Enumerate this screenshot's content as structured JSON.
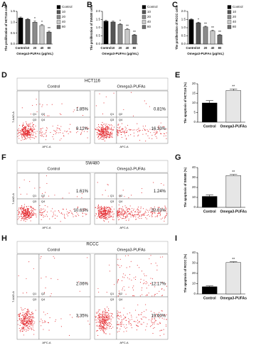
{
  "chart_data": [
    {
      "type": "bar",
      "panel": "A",
      "ylabel": "The proliferation of HCT116 cells",
      "xlabel": "Omega3-PUFAs (μg/mL)",
      "categories": [
        "Control",
        "10",
        "20",
        "40",
        "80"
      ],
      "values": [
        1.2,
        1.13,
        1.0,
        0.85,
        0.55
      ],
      "errors": [
        0.04,
        0.04,
        0.05,
        0.04,
        0.04
      ],
      "annotations": [
        null,
        null,
        "*",
        "*",
        "**"
      ],
      "colors": [
        "#000000",
        "#555555",
        "#8a8a8a",
        "#c8c8c8",
        "#6e6e6e"
      ],
      "ylim": [
        0,
        1.5
      ],
      "yticks": [
        {
          "value": 0,
          "label": "0.0"
        },
        {
          "value": 0.5,
          "label": "0.5"
        },
        {
          "value": 1,
          "label": "1.0"
        },
        {
          "value": 1.5,
          "label": "1.5"
        }
      ],
      "legend": true
    },
    {
      "type": "bar",
      "panel": "B",
      "ylabel": "The proliferation of SW480 cells",
      "xlabel": "Omega3-PUFAs (μg/mL)",
      "categories": [
        "Control",
        "10",
        "20",
        "40",
        "80"
      ],
      "values": [
        1.4,
        1.35,
        1.2,
        0.9,
        0.55
      ],
      "errors": [
        0.05,
        0.05,
        0.05,
        0.05,
        0.04
      ],
      "annotations": [
        null,
        null,
        "*",
        "**",
        "**"
      ],
      "colors": [
        "#000000",
        "#555555",
        "#8a8a8a",
        "#c8c8c8",
        "#6e6e6e"
      ],
      "ylim": [
        0,
        2
      ],
      "yticks": [
        {
          "value": 0,
          "label": "0.0"
        },
        {
          "value": 0.5,
          "label": "0.5"
        },
        {
          "value": 1,
          "label": "1.0"
        },
        {
          "value": 1.5,
          "label": "1.5"
        },
        {
          "value": 2,
          "label": "2.0"
        }
      ],
      "legend": true
    },
    {
      "type": "bar",
      "panel": "C",
      "ylabel": "The proliferation of RCCC cells",
      "xlabel": "Omega3-PUFAs (μg/mL)",
      "categories": [
        "Control",
        "10",
        "20",
        "40",
        "80"
      ],
      "values": [
        1.5,
        1.3,
        1.05,
        0.8,
        0.55
      ],
      "errors": [
        0.04,
        0.04,
        0.04,
        0.04,
        0.03
      ],
      "annotations": [
        null,
        "*",
        "**",
        "**",
        "**"
      ],
      "colors": [
        "#000000",
        "#555555",
        "#8a8a8a",
        "#c8c8c8",
        "#6e6e6e"
      ],
      "ylim": [
        0,
        2
      ],
      "yticks": [
        {
          "value": 0,
          "label": "0.0"
        },
        {
          "value": 0.5,
          "label": "0.5"
        },
        {
          "value": 1,
          "label": "1.0"
        },
        {
          "value": 1.5,
          "label": "1.5"
        },
        {
          "value": 2,
          "label": "2.0"
        }
      ],
      "legend": true
    },
    {
      "type": "flow",
      "panel": "D",
      "title": "HCT116",
      "xlabel": "APC-A",
      "ylabel": "7-AAD-A",
      "quadrants": [
        "Q1",
        "Q2",
        "Q3",
        "Q4"
      ],
      "samples": [
        {
          "name": "Control",
          "q2": {
            "value": 1.85,
            "label": "1.85%"
          },
          "q4": {
            "value": 9.12,
            "label": "9.12%"
          }
        },
        {
          "name": "Omega3-PUFAs",
          "q2": {
            "value": 0.81,
            "label": "0.81%"
          },
          "q4": {
            "value": 16.33,
            "label": "16.33%"
          }
        }
      ]
    },
    {
      "type": "bar",
      "panel": "E",
      "ylabel": "The apoptosis of HCT116 (%)",
      "categories": [
        "Control",
        "Omega3-PUFAs"
      ],
      "values": [
        10,
        16.5
      ],
      "errors": [
        1.2,
        0.8
      ],
      "annotations": [
        null,
        "**"
      ],
      "colors": [
        "#000000",
        "#e6e6e6"
      ],
      "ylim": [
        0,
        20
      ],
      "yticks": [
        0,
        5,
        10,
        15,
        20
      ]
    },
    {
      "type": "flow",
      "panel": "F",
      "title": "SW480",
      "xlabel": "APC-A",
      "ylabel": "7-AAD-A",
      "quadrants": [
        "Q1",
        "Q2",
        "Q3",
        "Q4"
      ],
      "samples": [
        {
          "name": "Control",
          "q2": {
            "value": 1.61,
            "label": "1.61%"
          },
          "q4": {
            "value": 10.63,
            "label": "10.63%"
          }
        },
        {
          "name": "Omega3-PUFAs",
          "q2": {
            "value": 1.24,
            "label": "1.24%"
          },
          "q4": {
            "value": 32.03,
            "label": "32.03%"
          }
        }
      ]
    },
    {
      "type": "bar",
      "panel": "G",
      "ylabel": "The apoptosis of SW480 (%)",
      "categories": [
        "Control",
        "Omega3-PUFAs"
      ],
      "values": [
        11,
        32
      ],
      "errors": [
        1.5,
        1
      ],
      "annotations": [
        null,
        "**"
      ],
      "colors": [
        "#000000",
        "#e6e6e6"
      ],
      "ylim": [
        0,
        40
      ],
      "yticks": [
        0,
        10,
        20,
        30,
        40
      ]
    },
    {
      "type": "flow",
      "panel": "H",
      "title": "RCCC",
      "xlabel": "APC-A",
      "ylabel": "7-AAD-A",
      "quadrants": [
        "Q1",
        "Q2",
        "Q3",
        "Q4"
      ],
      "samples": [
        {
          "name": "Control",
          "q2": {
            "value": 2.06,
            "label": "2.06%"
          },
          "q4": {
            "value": 3.35,
            "label": "3.35%"
          }
        },
        {
          "name": "Omega3-PUFAs",
          "q2": {
            "value": 12.17,
            "label": "12.17%"
          },
          "q4": {
            "value": 19.6,
            "label": "19.60%"
          }
        }
      ]
    },
    {
      "type": "bar",
      "panel": "I",
      "ylabel": "The apoptosis of RCCC (%)",
      "categories": [
        "Control",
        "Omega3-PUFAs"
      ],
      "values": [
        7,
        30.5
      ],
      "errors": [
        0.8,
        0.8
      ],
      "annotations": [
        null,
        "**"
      ],
      "colors": [
        "#000000",
        "#e6e6e6"
      ],
      "ylim": [
        0,
        40
      ],
      "yticks": [
        0,
        10,
        20,
        30,
        40
      ]
    }
  ]
}
